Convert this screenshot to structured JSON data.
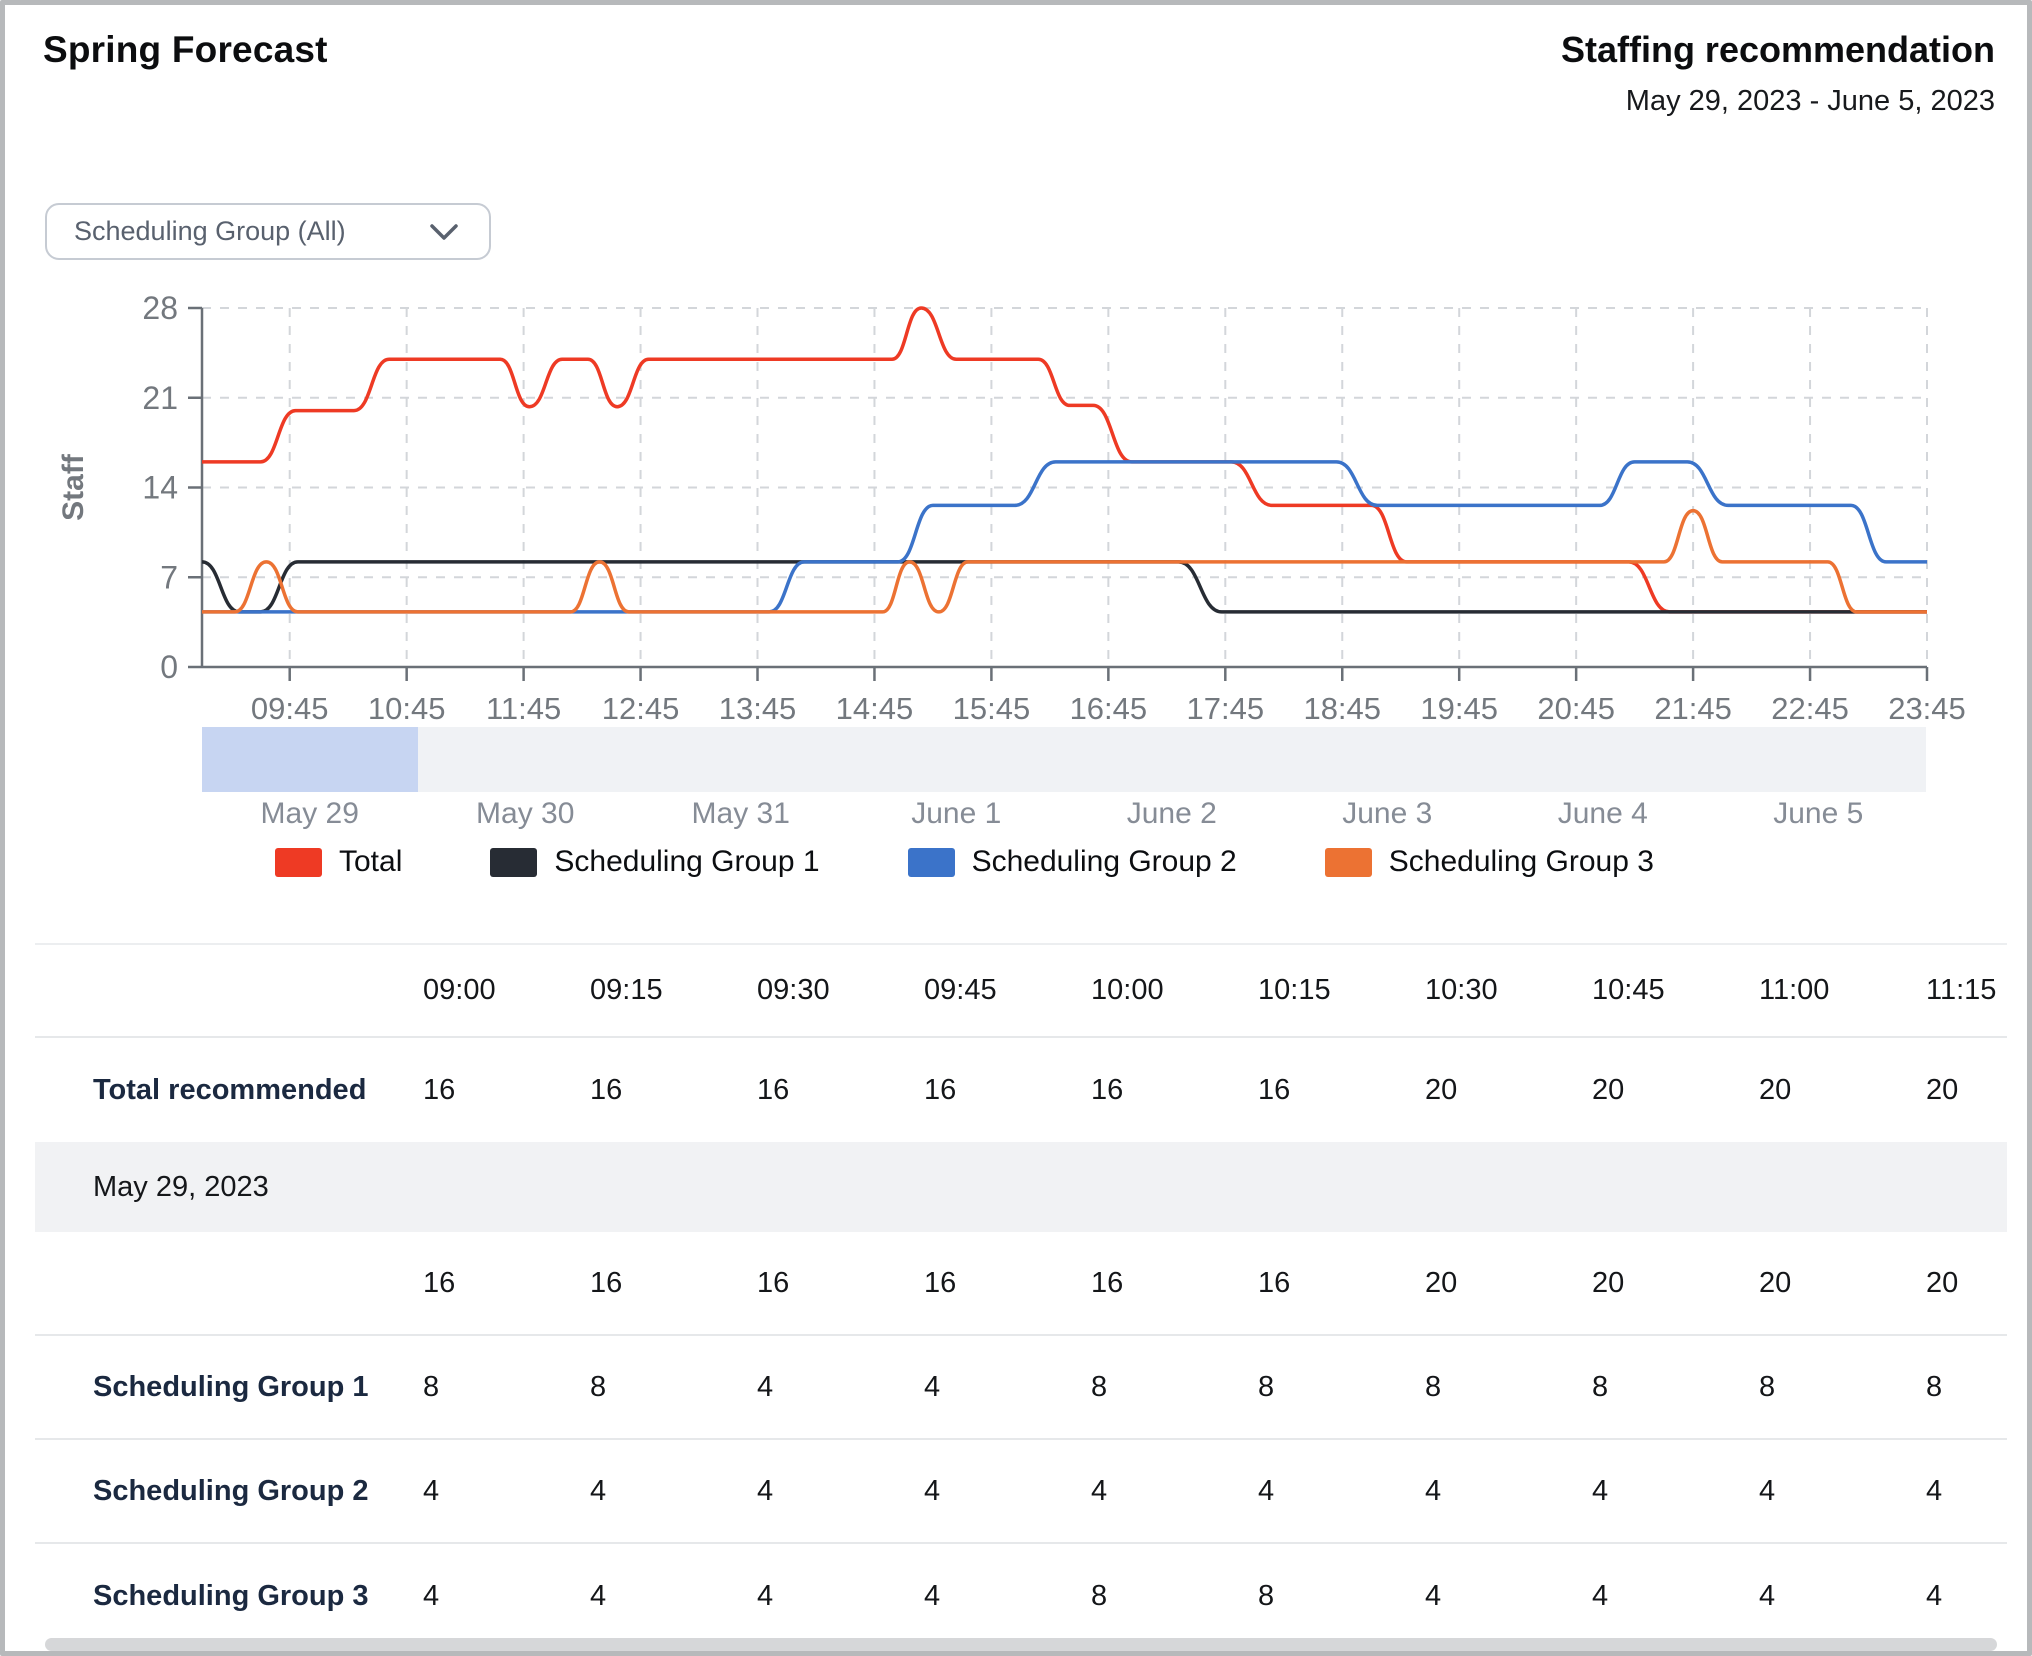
{
  "header": {
    "title": "Spring Forecast",
    "panel_title": "Staffing recommendation",
    "date_range": "May 29, 2023 - June 5, 2023"
  },
  "filter": {
    "label": "Scheduling Group (All)"
  },
  "chart_data": {
    "type": "line",
    "ylabel": "Staff",
    "xlabel": "",
    "y_ticks": [
      0,
      7,
      14,
      21,
      28
    ],
    "ylim": [
      0,
      28
    ],
    "x_domain": [
      9.0,
      23.75
    ],
    "x_tick_start": 9.75,
    "x_tick_step": 1,
    "x_tick_labels": [
      "09:45",
      "10:45",
      "11:45",
      "12:45",
      "13:45",
      "14:45",
      "15:45",
      "16:45",
      "17:45",
      "18:45",
      "19:45",
      "20:45",
      "21:45",
      "22:45",
      "23:45"
    ],
    "grid": "dashed",
    "legend_position": "bottom",
    "series": [
      {
        "name": "Total",
        "color": "#ee3a24",
        "points": [
          [
            9,
            16
          ],
          [
            9.5,
            16
          ],
          [
            9.8,
            20
          ],
          [
            10.3,
            20
          ],
          [
            10.6,
            24
          ],
          [
            11.55,
            24
          ],
          [
            11.8,
            20.3
          ],
          [
            12.08,
            24
          ],
          [
            12.3,
            24
          ],
          [
            12.55,
            20.3
          ],
          [
            12.82,
            24
          ],
          [
            14.9,
            24
          ],
          [
            15.15,
            28
          ],
          [
            15.45,
            24
          ],
          [
            16.15,
            24
          ],
          [
            16.42,
            20.4
          ],
          [
            16.62,
            20.4
          ],
          [
            16.95,
            16
          ],
          [
            17.8,
            16
          ],
          [
            18.15,
            12.6
          ],
          [
            19.0,
            12.6
          ],
          [
            19.3,
            8.2
          ],
          [
            21.2,
            8.2
          ],
          [
            21.55,
            4.3
          ],
          [
            23.75,
            4.3
          ]
        ]
      },
      {
        "name": "Scheduling Group 1",
        "color": "#272c34",
        "points": [
          [
            9,
            8.2
          ],
          [
            9.32,
            4.3
          ],
          [
            9.5,
            4.3
          ],
          [
            9.82,
            8.2
          ],
          [
            17.35,
            8.2
          ],
          [
            17.72,
            4.3
          ],
          [
            23.75,
            4.3
          ]
        ]
      },
      {
        "name": "Scheduling Group 2",
        "color": "#3b73c9",
        "points": [
          [
            9,
            4.3
          ],
          [
            13.85,
            4.3
          ],
          [
            14.15,
            8.2
          ],
          [
            14.95,
            8.2
          ],
          [
            15.25,
            12.6
          ],
          [
            15.95,
            12.6
          ],
          [
            16.3,
            16
          ],
          [
            18.7,
            16
          ],
          [
            19.05,
            12.6
          ],
          [
            20.95,
            12.6
          ],
          [
            21.25,
            16
          ],
          [
            21.7,
            16
          ],
          [
            22.05,
            12.6
          ],
          [
            23.1,
            12.6
          ],
          [
            23.4,
            8.2
          ],
          [
            23.75,
            8.2
          ]
        ]
      },
      {
        "name": "Scheduling Group 3",
        "color": "#ec7233",
        "points": [
          [
            9,
            4.3
          ],
          [
            9.28,
            4.3
          ],
          [
            9.55,
            8.2
          ],
          [
            9.82,
            4.3
          ],
          [
            12.15,
            4.3
          ],
          [
            12.4,
            8.2
          ],
          [
            12.65,
            4.3
          ],
          [
            14.82,
            4.3
          ],
          [
            15.05,
            8.2
          ],
          [
            15.3,
            4.3
          ],
          [
            15.55,
            8.2
          ],
          [
            21.5,
            8.2
          ],
          [
            21.75,
            12.2
          ],
          [
            22.0,
            8.2
          ],
          [
            22.9,
            8.2
          ],
          [
            23.15,
            4.3
          ],
          [
            23.75,
            4.3
          ]
        ]
      }
    ]
  },
  "scrubber": {
    "days": [
      "May 29",
      "May 30",
      "May 31",
      "June 1",
      "June 2",
      "June 3",
      "June 4",
      "June 5"
    ],
    "selected_index": 0,
    "track_color": "#f0f2f5",
    "highlight_color": "#c7d5f2"
  },
  "table": {
    "time_columns": [
      "09:00",
      "09:15",
      "09:30",
      "09:45",
      "10:00",
      "10:15",
      "10:30",
      "10:45",
      "11:00",
      "11:15"
    ],
    "rows": [
      {
        "type": "data",
        "label": "Total recommended",
        "bordered": false,
        "values": [
          "16",
          "16",
          "16",
          "16",
          "16",
          "16",
          "20",
          "20",
          "20",
          "20"
        ]
      },
      {
        "type": "section",
        "label": "May 29, 2023"
      },
      {
        "type": "data",
        "label": "",
        "bordered": true,
        "values": [
          "16",
          "16",
          "16",
          "16",
          "16",
          "16",
          "20",
          "20",
          "20",
          "20"
        ]
      },
      {
        "type": "data",
        "label": "Scheduling Group 1",
        "bordered": true,
        "values": [
          "8",
          "8",
          "4",
          "4",
          "8",
          "8",
          "8",
          "8",
          "8",
          "8"
        ]
      },
      {
        "type": "data",
        "label": "Scheduling Group 2",
        "bordered": true,
        "values": [
          "4",
          "4",
          "4",
          "4",
          "4",
          "4",
          "4",
          "4",
          "4",
          "4"
        ]
      },
      {
        "type": "data",
        "label": "Scheduling Group 3",
        "bordered": false,
        "values": [
          "4",
          "4",
          "4",
          "4",
          "8",
          "8",
          "4",
          "4",
          "4",
          "4"
        ]
      }
    ]
  }
}
